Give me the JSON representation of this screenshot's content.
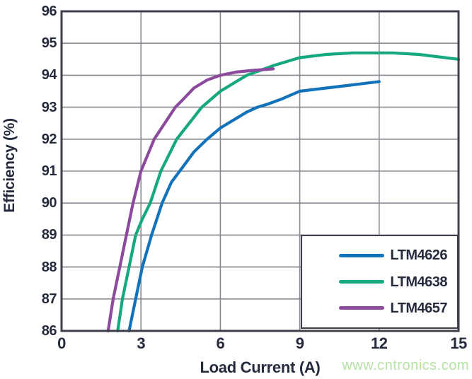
{
  "chart_data": {
    "type": "line",
    "title": "",
    "xlabel": "Load Current (A)",
    "ylabel": "Efficiency (%)",
    "xlim": [
      0,
      15
    ],
    "ylim": [
      86,
      96
    ],
    "xticks": [
      0,
      3,
      6,
      9,
      12,
      15
    ],
    "yticks": [
      86,
      87,
      88,
      89,
      90,
      91,
      92,
      93,
      94,
      95,
      96
    ],
    "grid": true,
    "legend_position": "bottom-right",
    "series": [
      {
        "name": "LTM4626",
        "color": "#1373ba",
        "points": [
          [
            2.55,
            86
          ],
          [
            2.8,
            87
          ],
          [
            3.05,
            88
          ],
          [
            3.4,
            89
          ],
          [
            3.8,
            90
          ],
          [
            4.15,
            90.65
          ],
          [
            4.6,
            91.15
          ],
          [
            5.0,
            91.6
          ],
          [
            5.5,
            92.0
          ],
          [
            6.0,
            92.35
          ],
          [
            6.5,
            92.6
          ],
          [
            7.0,
            92.85
          ],
          [
            7.4,
            93.0
          ],
          [
            7.8,
            93.1
          ],
          [
            8.3,
            93.25
          ],
          [
            9.0,
            93.5
          ],
          [
            10.0,
            93.6
          ],
          [
            11.0,
            93.7
          ],
          [
            12.0,
            93.8
          ]
        ]
      },
      {
        "name": "LTM4638",
        "color": "#16a87e",
        "points": [
          [
            2.12,
            86
          ],
          [
            2.3,
            87
          ],
          [
            2.55,
            88
          ],
          [
            2.8,
            89
          ],
          [
            3.05,
            89.5
          ],
          [
            3.35,
            90
          ],
          [
            3.75,
            91
          ],
          [
            4.35,
            92
          ],
          [
            5.3,
            93
          ],
          [
            6.0,
            93.5
          ],
          [
            6.5,
            93.75
          ],
          [
            7.0,
            94.0
          ],
          [
            7.5,
            94.15
          ],
          [
            8.0,
            94.3
          ],
          [
            9.0,
            94.55
          ],
          [
            10.0,
            94.65
          ],
          [
            11.0,
            94.7
          ],
          [
            12.5,
            94.7
          ],
          [
            13.5,
            94.65
          ],
          [
            15.0,
            94.5
          ]
        ]
      },
      {
        "name": "LTM4657",
        "color": "#8c4a9c",
        "points": [
          [
            1.76,
            86
          ],
          [
            1.95,
            87
          ],
          [
            2.2,
            88
          ],
          [
            2.45,
            89
          ],
          [
            2.7,
            90
          ],
          [
            3.0,
            91
          ],
          [
            3.5,
            92
          ],
          [
            4.3,
            93
          ],
          [
            4.6,
            93.25
          ],
          [
            5.0,
            93.6
          ],
          [
            5.5,
            93.85
          ],
          [
            6.0,
            94.0
          ],
          [
            6.6,
            94.1
          ],
          [
            7.2,
            94.15
          ],
          [
            8.0,
            94.2
          ]
        ]
      }
    ]
  },
  "watermark": {
    "text": "www.cntronics.com",
    "color": "#b7e2a6"
  },
  "colors": {
    "axis": "#3e3e4a",
    "grid": "#888890",
    "text": "#252a3d",
    "background": "#ffffff"
  }
}
